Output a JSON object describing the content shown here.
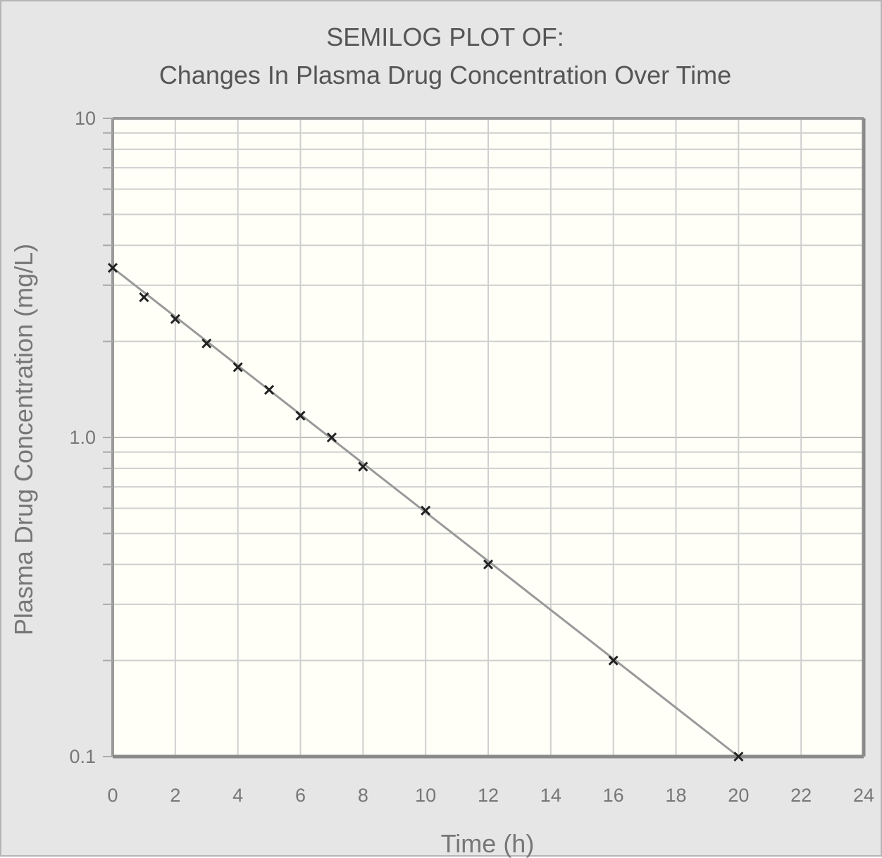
{
  "chart_data": {
    "type": "scatter",
    "title": "SEMILOG PLOT OF:",
    "subtitle": "Changes In Plasma Drug Concentration Over Time",
    "xlabel": "Time (h)",
    "ylabel": "Plasma Drug Concentration (mg/L)",
    "xlim": [
      0,
      24
    ],
    "ylim": [
      0.1,
      10
    ],
    "yscale": "log",
    "x_ticks": [
      0,
      2,
      4,
      6,
      8,
      10,
      12,
      14,
      16,
      18,
      20,
      22,
      24
    ],
    "x_tick_labels": [
      "0",
      "2",
      "4",
      "6",
      "8",
      "10",
      "12",
      "14",
      "16",
      "18",
      "20",
      "22",
      "24"
    ],
    "y_ticks": [
      0.1,
      1.0,
      10
    ],
    "y_tick_labels": [
      "0.1",
      "1.0",
      "10"
    ],
    "grid": true,
    "marker": "x",
    "series": [
      {
        "x": [
          0,
          1,
          2,
          3,
          4,
          5,
          6,
          7,
          8,
          10,
          12,
          16,
          20
        ],
        "y": [
          3.4,
          2.75,
          2.35,
          1.97,
          1.66,
          1.41,
          1.17,
          1.0,
          0.81,
          0.59,
          0.4,
          0.2,
          0.1
        ]
      }
    ],
    "trendline": {
      "x": [
        0,
        20
      ],
      "y": [
        3.4,
        0.1
      ]
    },
    "colors": {
      "background": "#e6e6e6",
      "plot_area": "#fffff8",
      "grid": "#cfcfcf",
      "line": "#999999",
      "marker": "#222222"
    }
  }
}
